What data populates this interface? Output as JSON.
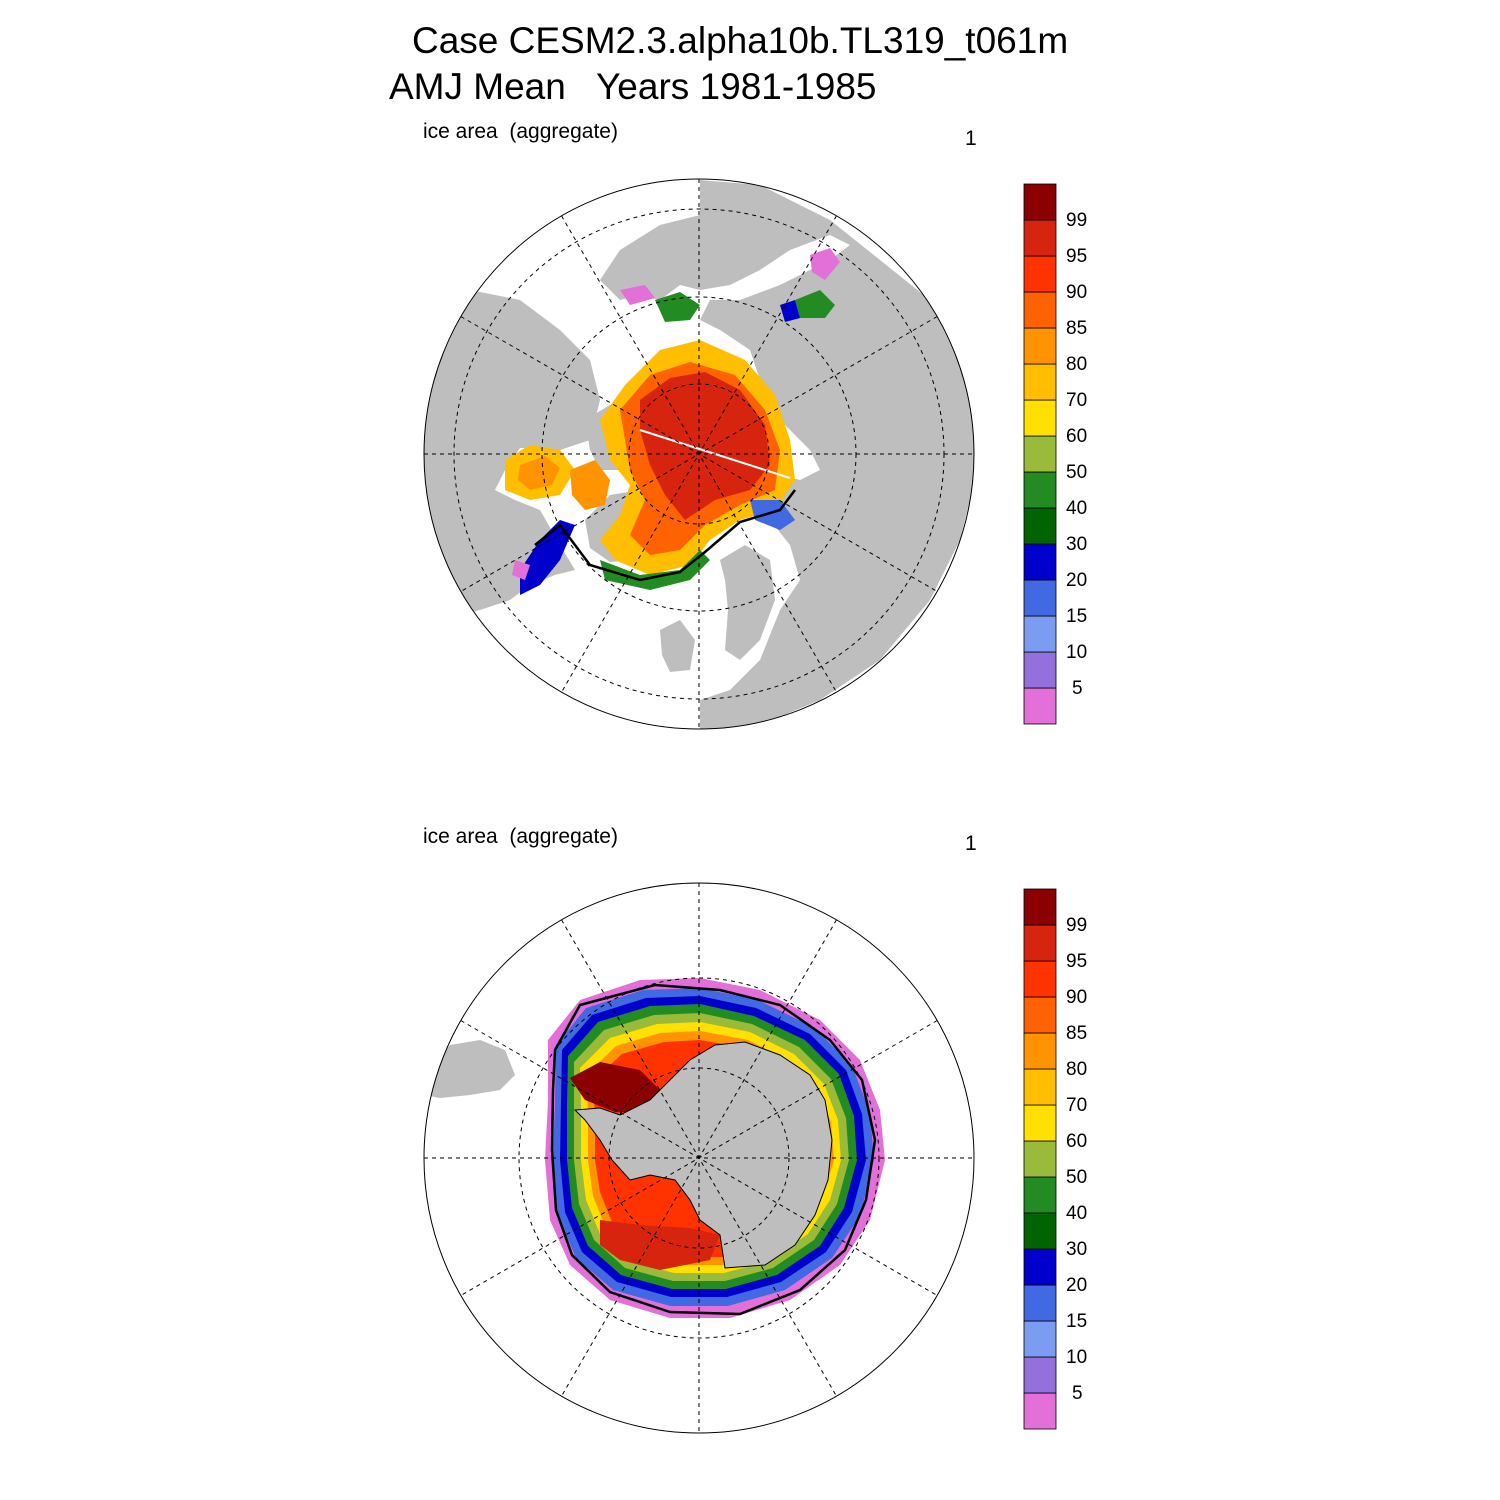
{
  "title": {
    "line1": "Case CESM2.3.alpha10b.TL319_t061m",
    "line2": "AMJ Mean   Years 1981-1985"
  },
  "panels": [
    {
      "id": "north",
      "label": "ice area  (aggregate)",
      "number": "1"
    },
    {
      "id": "south",
      "label": "ice area  (aggregate)",
      "number": "1"
    }
  ],
  "colorbar": {
    "colors": [
      "#e36fd9",
      "#9370db",
      "#7b9cf0",
      "#4169e1",
      "#0000cd",
      "#006400",
      "#228b22",
      "#9aba3a",
      "#ffe000",
      "#ffbf00",
      "#ff9400",
      "#ff6200",
      "#ff3300",
      "#d7240f",
      "#8b0000"
    ],
    "labels": [
      "5",
      "10",
      "15",
      "20",
      "30",
      "40",
      "50",
      "60",
      "70",
      "80",
      "85",
      "90",
      "95",
      "99"
    ]
  },
  "map_colors": {
    "land": "#bebebe",
    "ocean": "#ffffff",
    "ice_edge": "#000000"
  }
}
